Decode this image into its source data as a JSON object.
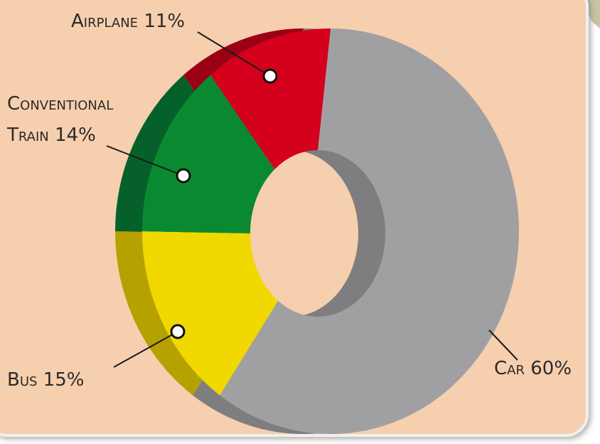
{
  "chart_data": {
    "type": "donut",
    "categories": [
      "Airplane",
      "Conventional Train",
      "Bus",
      "Car"
    ],
    "values": [
      11,
      14,
      15,
      60
    ],
    "value_labels": [
      "11%",
      "14%",
      "15%",
      "60%"
    ],
    "colors": [
      "#d4001c",
      "#0a8a30",
      "#f0d800",
      "#a0a0a2"
    ],
    "depth_colors": [
      "#9c0014",
      "#06602a",
      "#b5a100",
      "#7e7e80"
    ]
  }
}
